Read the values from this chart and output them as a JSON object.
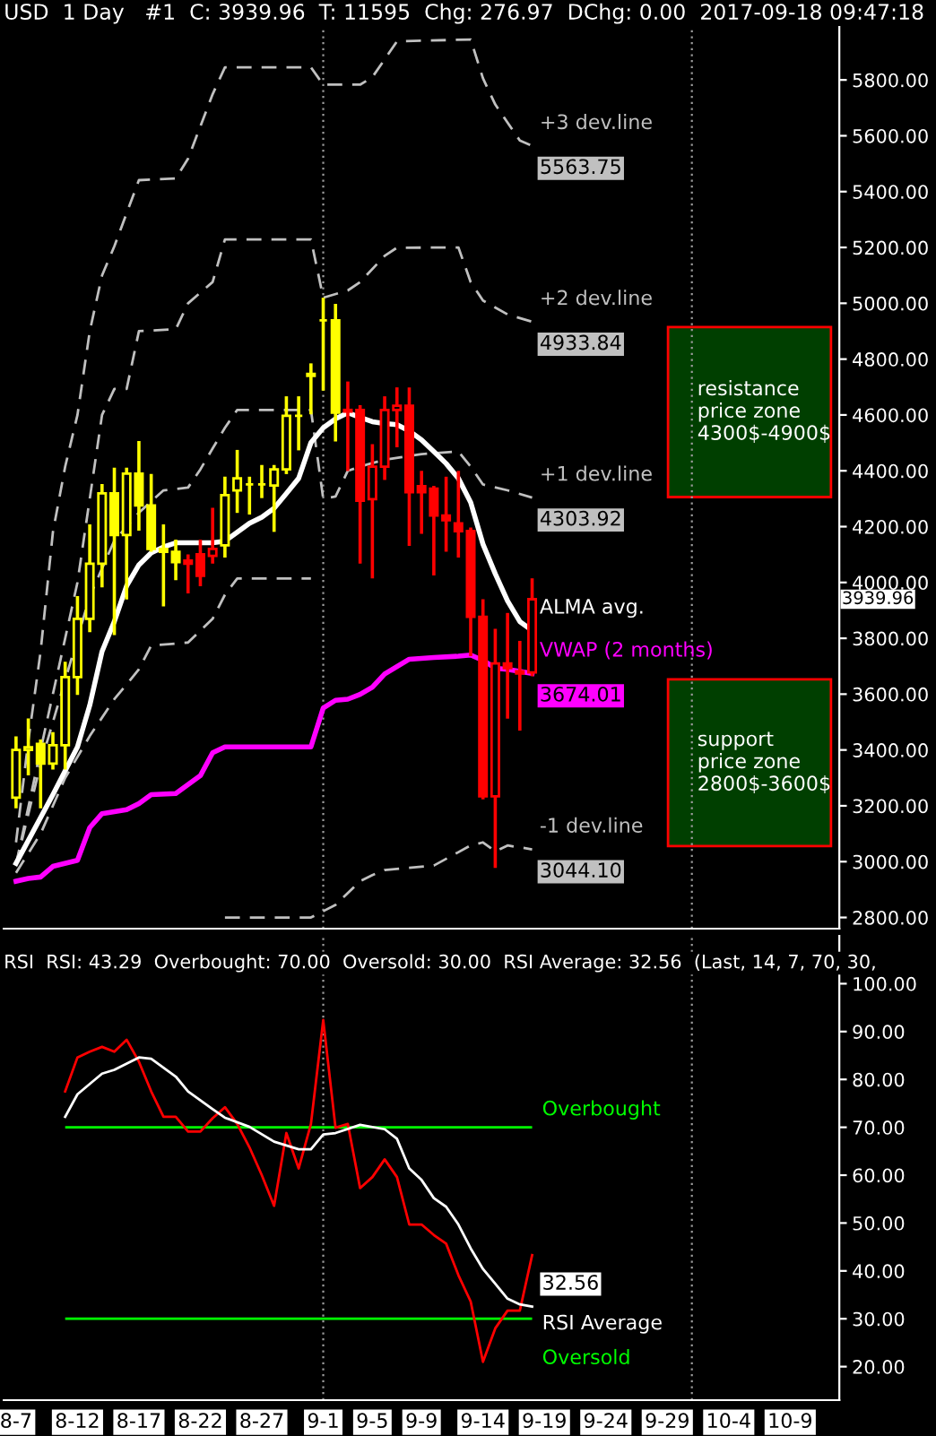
{
  "chart_data": [
    {
      "type": "candlestick",
      "title": "USD  1 Day   #1  C: 3939.96  T: 11595  Chg: 276.97  DChg: 0.00  2017-09-18 09:47:18",
      "xlim": [
        "2017-08-06",
        "2017-10-13"
      ],
      "tick_labels": "y",
      "ylim": [
        2760,
        5990
      ],
      "yticks": [
        {
          "value": 2800,
          "label": "2800.00"
        },
        {
          "value": 3000,
          "label": "3000.00"
        },
        {
          "value": 3200,
          "label": "3200.00"
        },
        {
          "value": 3400,
          "label": "3400.00"
        },
        {
          "value": 3600,
          "label": "3600.00"
        },
        {
          "value": 3800,
          "label": "3800.00"
        },
        {
          "value": 4000,
          "label": "4000.00"
        },
        {
          "value": 4200,
          "label": "4200.00"
        },
        {
          "value": 4400,
          "label": "4400.00"
        },
        {
          "value": 4600,
          "label": "4600.00"
        },
        {
          "value": 4800,
          "label": "4800.00"
        },
        {
          "value": 5000,
          "label": "5000.00"
        },
        {
          "value": 5200,
          "label": "5200.00"
        },
        {
          "value": 5400,
          "label": "5400.00"
        },
        {
          "value": 5600,
          "label": "5600.00"
        },
        {
          "value": 5800,
          "label": "5800.00"
        }
      ],
      "series": [
        {
          "type": "line",
          "color": "#c0c0c0",
          "line_style": "dashed",
          "x": [
            "2017-08-07",
            "2017-08-09",
            "2017-08-11",
            "2017-08-13",
            "2017-08-15",
            "2017-08-16",
            "2017-08-17",
            "2017-08-18",
            "2017-08-21",
            "2017-08-23",
            "2017-08-24",
            "2017-08-25",
            "2017-08-31"
          ],
          "values": [
            2960,
            3100,
            3300,
            3450,
            3582,
            3635,
            3689,
            3774,
            3785,
            3870,
            3956,
            4014,
            4014
          ]
        },
        {
          "type": "line",
          "name": "+3 dev.line",
          "color": "#c0c0c0",
          "line_style": "dashed",
          "x": [
            "2017-08-07",
            "2017-08-08",
            "2017-08-09",
            "2017-08-10",
            "2017-08-11",
            "2017-08-12",
            "2017-08-13",
            "2017-08-14",
            "2017-08-15",
            "2017-08-17",
            "2017-08-20",
            "2017-08-21",
            "2017-08-23",
            "2017-08-24",
            "2017-08-31",
            "2017-09-01",
            "2017-09-04",
            "2017-09-05",
            "2017-09-07",
            "2017-09-13",
            "2017-09-14",
            "2017-09-15",
            "2017-09-17",
            "2017-09-18"
          ],
          "values": [
            3069,
            3432,
            3753,
            4180,
            4415,
            4600,
            4900,
            5100,
            5204,
            5441,
            5447,
            5518,
            5749,
            5845,
            5845,
            5783,
            5783,
            5810,
            5938,
            5945,
            5806,
            5712,
            5583,
            5563.75
          ],
          "value_labels": [
            null,
            null,
            null,
            null,
            null,
            null,
            null,
            null,
            null,
            null,
            null,
            null,
            null,
            null,
            null,
            null,
            null,
            null,
            null,
            null,
            null,
            null,
            null,
            "5563.75"
          ]
        },
        {
          "type": "line",
          "name": "+2 dev.line",
          "color": "#c0c0c0",
          "line_style": "dashed",
          "x": [
            "2017-08-07",
            "2017-08-09",
            "2017-08-11",
            "2017-08-12",
            "2017-08-13",
            "2017-08-14",
            "2017-08-15",
            "2017-08-16",
            "2017-08-17",
            "2017-08-20",
            "2017-08-21",
            "2017-08-23",
            "2017-08-24",
            "2017-08-31",
            "2017-09-01",
            "2017-09-03",
            "2017-09-04",
            "2017-09-06",
            "2017-09-07",
            "2017-09-12",
            "2017-09-13",
            "2017-09-14",
            "2017-09-16",
            "2017-09-18"
          ],
          "values": [
            2990,
            3400,
            3800,
            4000,
            4300,
            4600,
            4693,
            4693,
            4900,
            4907,
            5000,
            5076,
            5229,
            5229,
            5020,
            5046,
            5076,
            5170,
            5199,
            5200,
            5076,
            5010,
            4960,
            4933.84
          ],
          "value_labels": [
            null,
            null,
            null,
            null,
            null,
            null,
            null,
            null,
            null,
            null,
            null,
            null,
            null,
            null,
            null,
            null,
            null,
            null,
            null,
            null,
            null,
            null,
            null,
            "4933.84"
          ]
        },
        {
          "type": "line",
          "name": "+1 dev.line",
          "color": "#c0c0c0",
          "line_style": "dashed",
          "x": [
            "2017-08-07",
            "2017-08-09",
            "2017-08-13",
            "2017-08-15",
            "2017-08-17",
            "2017-08-19",
            "2017-08-21",
            "2017-08-22",
            "2017-08-23",
            "2017-08-24",
            "2017-08-25",
            "2017-08-31",
            "2017-09-01",
            "2017-09-02",
            "2017-09-03",
            "2017-09-04",
            "2017-09-06",
            "2017-09-09",
            "2017-09-12",
            "2017-09-13",
            "2017-09-14",
            "2017-09-16",
            "2017-09-18"
          ],
          "values": [
            2990,
            3350,
            3950,
            4150,
            4250,
            4330,
            4340,
            4405,
            4480,
            4554,
            4618,
            4618,
            4300,
            4308,
            4400,
            4415,
            4440,
            4460,
            4469,
            4415,
            4351,
            4330,
            4303.92
          ],
          "value_labels": [
            null,
            null,
            null,
            null,
            null,
            null,
            null,
            null,
            null,
            null,
            null,
            null,
            null,
            null,
            null,
            null,
            null,
            null,
            null,
            null,
            null,
            null,
            "4303.92"
          ]
        },
        {
          "type": "line",
          "name": "-1 dev.line",
          "color": "#c0c0c0",
          "line_style": "dashed",
          "x": [
            "2017-08-24",
            "2017-08-31",
            "2017-09-02",
            "2017-09-04",
            "2017-09-05",
            "2017-09-06",
            "2017-09-10",
            "2017-09-13",
            "2017-09-14",
            "2017-09-15",
            "2017-09-16",
            "2017-09-18"
          ],
          "values": [
            2800,
            2800,
            2845,
            2930,
            2952,
            2970,
            2986,
            3058,
            3069,
            3037,
            3058,
            3044.1
          ],
          "value_labels": [
            null,
            null,
            null,
            null,
            null,
            null,
            null,
            null,
            null,
            null,
            null,
            "3044.10"
          ]
        },
        {
          "type": "line",
          "name": "ALMA avg.",
          "color": "#ffffff",
          "line_style": "solid",
          "x": [
            "2017-08-07",
            "2017-08-10",
            "2017-08-12",
            "2017-08-13",
            "2017-08-14",
            "2017-08-15",
            "2017-08-16",
            "2017-08-17",
            "2017-08-18",
            "2017-08-19",
            "2017-08-20",
            "2017-08-23",
            "2017-08-24",
            "2017-08-25",
            "2017-08-26",
            "2017-08-27",
            "2017-08-28",
            "2017-08-29",
            "2017-08-30",
            "2017-08-31",
            "2017-09-01",
            "2017-09-02",
            "2017-09-03",
            "2017-09-04",
            "2017-09-05",
            "2017-09-06",
            "2017-09-07",
            "2017-09-08",
            "2017-09-09",
            "2017-09-10",
            "2017-09-11",
            "2017-09-12",
            "2017-09-13",
            "2017-09-14",
            "2017-09-15",
            "2017-09-16",
            "2017-09-17",
            "2017-09-18"
          ],
          "values": [
            2994,
            3240,
            3411,
            3560,
            3753,
            3860,
            3988,
            4063,
            4106,
            4127,
            4142,
            4142,
            4148,
            4180,
            4212,
            4234,
            4266,
            4319,
            4373,
            4501,
            4554,
            4586,
            4608,
            4591,
            4576,
            4569,
            4565,
            4543,
            4511,
            4469,
            4426,
            4373,
            4287,
            4137,
            4031,
            3934,
            3860,
            3828
          ]
        },
        {
          "type": "line",
          "name": "VWAP (2 months)",
          "color": "#ff00ff",
          "line_style": "solid",
          "x": [
            "2017-08-07",
            "2017-08-08",
            "2017-08-09",
            "2017-08-10",
            "2017-08-12",
            "2017-08-13",
            "2017-08-14",
            "2017-08-16",
            "2017-08-17",
            "2017-08-18",
            "2017-08-20",
            "2017-08-22",
            "2017-08-23",
            "2017-08-24",
            "2017-08-30",
            "2017-08-31",
            "2017-09-01",
            "2017-09-02",
            "2017-09-03",
            "2017-09-04",
            "2017-09-05",
            "2017-09-06",
            "2017-09-07",
            "2017-09-08",
            "2017-09-10",
            "2017-09-12",
            "2017-09-13",
            "2017-09-14",
            "2017-09-15",
            "2017-09-16",
            "2017-09-18"
          ],
          "values": [
            2930,
            2940,
            2945,
            2983,
            3005,
            3122,
            3172,
            3186,
            3208,
            3240,
            3244,
            3308,
            3390,
            3411,
            3411,
            3411,
            3550,
            3578,
            3582,
            3599,
            3625,
            3672,
            3699,
            3725,
            3731,
            3736,
            3740,
            3721,
            3693,
            3689,
            3674.01
          ],
          "value_labels": [
            null,
            null,
            null,
            null,
            null,
            null,
            null,
            null,
            null,
            null,
            null,
            null,
            null,
            null,
            null,
            null,
            null,
            null,
            null,
            null,
            null,
            null,
            null,
            null,
            null,
            null,
            null,
            null,
            null,
            null,
            "3674.01"
          ]
        },
        {
          "color": "#ffff00",
          "x": [
            "2017-08-07",
            "2017-08-08",
            "2017-08-09",
            "2017-08-10",
            "2017-08-11",
            "2017-08-12",
            "2017-08-13",
            "2017-08-14",
            "2017-08-15",
            "2017-08-16",
            "2017-08-17",
            "2017-08-18",
            "2017-08-19",
            "2017-08-20",
            "2017-08-24",
            "2017-08-25",
            "2017-08-26",
            "2017-08-27",
            "2017-08-28",
            "2017-08-29",
            "2017-08-30",
            "2017-08-31",
            "2017-09-01",
            "2017-09-02"
          ],
          "ohlc": [
            [
              3229,
              3443,
              3197,
              3400
            ],
            [
              3400,
              3507,
              3315,
              3410
            ],
            [
              3422,
              3432,
              3197,
              3351
            ],
            [
              3351,
              3458,
              3336,
              3417
            ],
            [
              3417,
              3710,
              3336,
              3661
            ],
            [
              3661,
              3945,
              3603,
              3870
            ],
            [
              3870,
              4202,
              3828,
              4067
            ],
            [
              4067,
              4347,
              3988,
              4319
            ],
            [
              4319,
              4405,
              3817,
              4170
            ],
            [
              4170,
              4405,
              3945,
              4390
            ],
            [
              4390,
              4501,
              4191,
              4276
            ],
            [
              4276,
              4383,
              4116,
              4120
            ],
            [
              4120,
              4202,
              3920,
              4110
            ],
            [
              4110,
              4148,
              4014,
              4073
            ],
            [
              4133,
              4373,
              4095,
              4313
            ],
            [
              4330,
              4469,
              4255,
              4373
            ],
            [
              4351,
              4373,
              4249,
              4351
            ],
            [
              4351,
              4415,
              4308,
              4351
            ],
            [
              4347,
              4415,
              4187,
              4405
            ],
            [
              4405,
              4661,
              4394,
              4597
            ],
            [
              4597,
              4661,
              4479,
              4597
            ],
            [
              4740,
              4779,
              4608,
              4747
            ],
            [
              4939,
              5014,
              4693,
              4939
            ],
            [
              4939,
              4992,
              4511,
              4608
            ]
          ]
        },
        {
          "color": "#ff0000",
          "x": [
            "2017-08-21",
            "2017-08-22",
            "2017-08-23",
            "2017-09-03",
            "2017-09-04",
            "2017-09-05",
            "2017-09-06",
            "2017-09-07",
            "2017-09-08",
            "2017-09-09",
            "2017-09-10",
            "2017-09-11",
            "2017-09-12",
            "2017-09-13",
            "2017-09-14",
            "2017-09-15",
            "2017-09-16",
            "2017-09-17",
            "2017-09-18"
          ],
          "ohlc": [
            [
              4078,
              4095,
              3967,
              4067
            ],
            [
              4101,
              4148,
              3992,
              4024
            ],
            [
              4095,
              4262,
              4073,
              4120
            ],
            [
              4612,
              4714,
              4405,
              4618
            ],
            [
              4618,
              4629,
              4073,
              4293
            ],
            [
              4298,
              4490,
              4020,
              4415
            ],
            [
              4415,
              4661,
              4373,
              4618
            ],
            [
              4618,
              4693,
              4490,
              4633
            ],
            [
              4633,
              4693,
              4137,
              4323
            ],
            [
              4345,
              4394,
              4180,
              4323
            ],
            [
              4336,
              4340,
              4031,
              4240
            ],
            [
              4240,
              4373,
              4116,
              4223
            ],
            [
              4212,
              4394,
              4095,
              4184
            ],
            [
              4184,
              4191,
              3742,
              3877
            ],
            [
              3877,
              3934,
              3229,
              3234
            ],
            [
              3234,
              3828,
              2983,
              3710
            ],
            [
              3710,
              3885,
              3518,
              3693
            ],
            [
              3682,
              3785,
              3475,
              3674
            ],
            [
              3678,
              4009,
              3670,
              3939.96
            ]
          ],
          "value_labels": [
            null,
            null,
            null,
            null,
            null,
            null,
            null,
            null,
            null,
            null,
            null,
            null,
            null,
            null,
            null,
            null,
            null,
            null,
            "3939.96"
          ]
        }
      ],
      "ref_lines": [
        {
          "axis": "x",
          "value": "2017-09-01",
          "color": "#9a9a9a",
          "line_style": "dotted"
        },
        {
          "axis": "x",
          "value": "2017-10-01",
          "color": "#9a9a9a",
          "line_style": "dotted"
        }
      ],
      "bands": [
        {
          "axis": "y",
          "from": 4306,
          "to": 4915,
          "label": "resistance\nprice zone\n4300$-4900$",
          "color": "#003f00"
        },
        {
          "axis": "y",
          "from": 3056,
          "to": 3653,
          "label": "support\nprice zone\n2800$-3600$",
          "color": "#003f00"
        }
      ]
    },
    {
      "type": "line",
      "title": "RSI  RSI: 43.29  Overbought: 70.00  Oversold: 30.00  RSI Average: 32.56  (Last, 14, 7, 70, 30,",
      "xlim": [
        "2017-08-06",
        "2017-10-13"
      ],
      "xticks": [
        {
          "value": "2017-08-07",
          "label": "8-7"
        },
        {
          "value": "2017-08-12",
          "label": "8-12"
        },
        {
          "value": "2017-08-17",
          "label": "8-17"
        },
        {
          "value": "2017-08-22",
          "label": "8-22"
        },
        {
          "value": "2017-08-27",
          "label": "8-27"
        },
        {
          "value": "2017-09-01",
          "label": "9-1"
        },
        {
          "value": "2017-09-05",
          "label": "9-5"
        },
        {
          "value": "2017-09-09",
          "label": "9-9"
        },
        {
          "value": "2017-09-14",
          "label": "9-14"
        },
        {
          "value": "2017-09-19",
          "label": "9-19"
        },
        {
          "value": "2017-09-24",
          "label": "9-24"
        },
        {
          "value": "2017-09-29",
          "label": "9-29"
        },
        {
          "value": "2017-10-04",
          "label": "10-4"
        },
        {
          "value": "2017-10-09",
          "label": "10-9"
        }
      ],
      "ylim": [
        13,
        110
      ],
      "yticks": [
        {
          "value": 20,
          "label": "20.00"
        },
        {
          "value": 30,
          "label": "30.00"
        },
        {
          "value": 40,
          "label": "40.00"
        },
        {
          "value": 50,
          "label": "50.00"
        },
        {
          "value": 60,
          "label": "60.00"
        },
        {
          "value": 70,
          "label": "70.00"
        },
        {
          "value": 80,
          "label": "80.00"
        },
        {
          "value": 90,
          "label": "90.00"
        },
        {
          "value": 100,
          "label": "100.00"
        }
      ],
      "series": [
        {
          "color": "#ff0000",
          "x": [
            "2017-08-11",
            "2017-08-12",
            "2017-08-13",
            "2017-08-14",
            "2017-08-15",
            "2017-08-16",
            "2017-08-17",
            "2017-08-18",
            "2017-08-19",
            "2017-08-20",
            "2017-08-21",
            "2017-08-22",
            "2017-08-23",
            "2017-08-24",
            "2017-08-25",
            "2017-08-26",
            "2017-08-27",
            "2017-08-28",
            "2017-08-29",
            "2017-08-30",
            "2017-08-31",
            "2017-09-01",
            "2017-09-02",
            "2017-09-03",
            "2017-09-04",
            "2017-09-05",
            "2017-09-06",
            "2017-09-07",
            "2017-09-08",
            "2017-09-09",
            "2017-09-10",
            "2017-09-11",
            "2017-09-12",
            "2017-09-13",
            "2017-09-14",
            "2017-09-15",
            "2017-09-16",
            "2017-09-17",
            "2017-09-18"
          ],
          "values": [
            77.5,
            84.6,
            85.8,
            86.8,
            85.8,
            88.3,
            83.7,
            77.5,
            72.2,
            72.2,
            69.1,
            69.1,
            71.9,
            74.2,
            70.7,
            65.8,
            60,
            53.6,
            68.8,
            61.4,
            70.7,
            92.4,
            69.9,
            70.7,
            57.3,
            59.6,
            63.3,
            59.6,
            49.7,
            49.7,
            47.5,
            45.7,
            39.1,
            33.6,
            21.0,
            28.0,
            31.7,
            31.7,
            43.29
          ]
        },
        {
          "name": "RSI Average",
          "color": "#ffffff",
          "x": [
            "2017-08-11",
            "2017-08-12",
            "2017-08-14",
            "2017-08-15",
            "2017-08-17",
            "2017-08-18",
            "2017-08-20",
            "2017-08-21",
            "2017-08-23",
            "2017-08-24",
            "2017-08-26",
            "2017-08-28",
            "2017-08-30",
            "2017-08-31",
            "2017-09-01",
            "2017-09-02",
            "2017-09-04",
            "2017-09-06",
            "2017-09-07",
            "2017-09-08",
            "2017-09-09",
            "2017-09-10",
            "2017-09-11",
            "2017-09-12",
            "2017-09-13",
            "2017-09-14",
            "2017-09-15",
            "2017-09-16",
            "2017-09-17",
            "2017-09-18"
          ],
          "values": [
            72.2,
            76.9,
            81.2,
            82,
            84.6,
            84.3,
            80.6,
            77.5,
            73.8,
            72.0,
            70.1,
            67.0,
            65.4,
            65.4,
            68.5,
            68.8,
            70.5,
            69.6,
            67.6,
            61.4,
            59.0,
            55.2,
            53.4,
            49.7,
            44.7,
            40.4,
            37.3,
            34.2,
            33.0,
            32.56
          ],
          "value_labels": [
            null,
            null,
            null,
            null,
            null,
            null,
            null,
            null,
            null,
            null,
            null,
            null,
            null,
            null,
            null,
            null,
            null,
            null,
            null,
            null,
            null,
            null,
            null,
            null,
            null,
            null,
            null,
            null,
            null,
            "32.56"
          ]
        }
      ],
      "ref_lines": [
        {
          "axis": "y",
          "value": 70,
          "label": "Overbought",
          "color": "#00ff00"
        },
        {
          "axis": "y",
          "value": 30,
          "label": "Oversold",
          "color": "#00ff00"
        },
        {
          "axis": "x",
          "value": "2017-09-01",
          "color": "#9a9a9a",
          "line_style": "dotted"
        },
        {
          "axis": "x",
          "value": "2017-10-01",
          "color": "#9a9a9a",
          "line_style": "dotted"
        }
      ]
    }
  ]
}
